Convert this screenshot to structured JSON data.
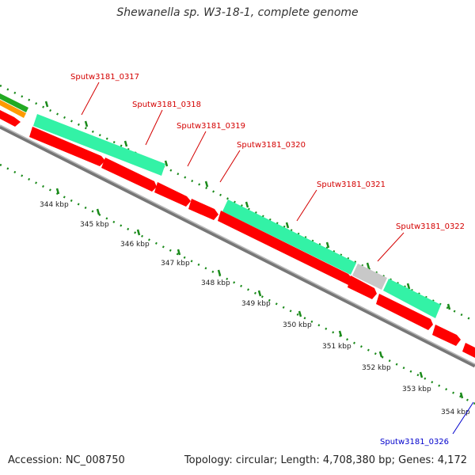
{
  "title": "Shewanella sp. W3-18-1, complete genome",
  "footer": {
    "accession": "Accession: NC_008750",
    "topology": "Topology: circular; Length: 4,708,380 bp; Genes: 4,172"
  },
  "colors": {
    "background": "#ffffff",
    "cds": "#ff0000",
    "gene": "#33f2a6",
    "gene_grey": "#c8c8c8",
    "orange_feature": "#ff9a00",
    "green_feature": "#22aa22",
    "backbone": "#888888",
    "ticks": "#1a8a1a",
    "label_red": "#d40000",
    "label_blue": "#0000cc"
  },
  "ruler": {
    "tick_labels": [
      "344 kbp",
      "345 kbp",
      "346 kbp",
      "347 kbp",
      "348 kbp",
      "349 kbp",
      "350 kbp",
      "351 kbp",
      "352 kbp",
      "353 kbp",
      "354 kbp"
    ]
  },
  "genes": [
    {
      "label": "Sputw3181_0317"
    },
    {
      "label": "Sputw3181_0318"
    },
    {
      "label": "Sputw3181_0319"
    },
    {
      "label": "Sputw3181_0320"
    },
    {
      "label": "Sputw3181_0321"
    },
    {
      "label": "Sputw3181_0322"
    },
    {
      "label": "Sputw3181_0326"
    }
  ]
}
